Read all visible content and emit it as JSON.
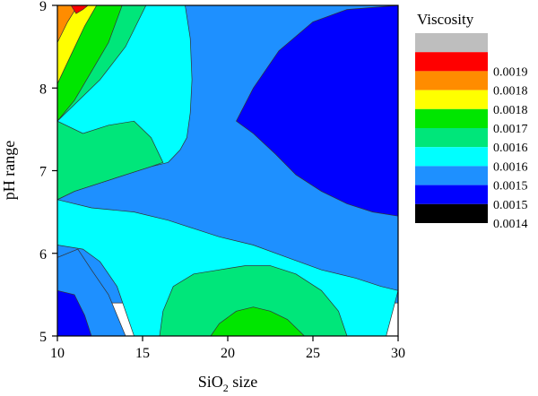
{
  "chart_data": {
    "type": "contour",
    "title": "",
    "xlabel": {
      "main": "SiO",
      "sub": "2",
      "tail": " size"
    },
    "ylabel": "pH range",
    "xlim": [
      10,
      30
    ],
    "ylim": [
      5,
      9
    ],
    "xticks": [
      "10",
      "15",
      "20",
      "25",
      "30"
    ],
    "yticks": [
      "5",
      "6",
      "7",
      "8",
      "9"
    ],
    "legend": {
      "title": "Viscosity",
      "position": "right",
      "levels": [
        {
          "label": "",
          "color": "#bebebe"
        },
        {
          "label": "0.0019",
          "color": "#ff0000"
        },
        {
          "label": "0.0018",
          "color": "#ff8c00"
        },
        {
          "label": "0.0018",
          "color": "#ffff00"
        },
        {
          "label": "0.0017",
          "color": "#00e600"
        },
        {
          "label": "0.0016",
          "color": "#00e67a"
        },
        {
          "label": "0.0016",
          "color": "#00ffff"
        },
        {
          "label": "0.0015",
          "color": "#1e90ff"
        },
        {
          "label": "0.0015",
          "color": "#0000ff"
        },
        {
          "label": "0.0014",
          "color": "#000000"
        }
      ]
    },
    "regions": [
      {
        "color": "#1e90ff",
        "points": [
          [
            10,
            9
          ],
          [
            30,
            9
          ],
          [
            30,
            5.4
          ],
          [
            10,
            5.4
          ]
        ]
      },
      {
        "color": "#00ffff",
        "points": [
          [
            10,
            8.35
          ],
          [
            10,
            6.65
          ],
          [
            11,
            6.75
          ],
          [
            12.5,
            6.85
          ],
          [
            14,
            6.95
          ],
          [
            15.5,
            7.05
          ],
          [
            16.5,
            7.1
          ],
          [
            17.2,
            7.25
          ],
          [
            17.6,
            7.4
          ],
          [
            17.8,
            7.7
          ],
          [
            17.9,
            8.1
          ],
          [
            17.8,
            8.6
          ],
          [
            17.5,
            9
          ],
          [
            11.7,
            9
          ],
          [
            11,
            8.8
          ]
        ]
      },
      {
        "color": "#00ffff",
        "points": [
          [
            10,
            6.65
          ],
          [
            12,
            6.55
          ],
          [
            14.5,
            6.5
          ],
          [
            16.5,
            6.4
          ],
          [
            18,
            6.3
          ],
          [
            19.5,
            6.2
          ],
          [
            21.5,
            6.1
          ],
          [
            23.5,
            5.95
          ],
          [
            25.5,
            5.8
          ],
          [
            27.5,
            5.7
          ],
          [
            29,
            5.6
          ],
          [
            30,
            5.55
          ],
          [
            29.3,
            5
          ],
          [
            14.5,
            5
          ],
          [
            13.5,
            5.6
          ],
          [
            12.5,
            5.9
          ],
          [
            11.5,
            6.05
          ],
          [
            10,
            6.1
          ]
        ]
      },
      {
        "color": "#00e67a",
        "points": [
          [
            10,
            7.6
          ],
          [
            11,
            7.8
          ],
          [
            12.5,
            8.1
          ],
          [
            14,
            8.5
          ],
          [
            15.2,
            9
          ],
          [
            11.7,
            9
          ],
          [
            11,
            8.8
          ],
          [
            10,
            8.35
          ],
          [
            10,
            6.65
          ],
          [
            11,
            6.75
          ],
          [
            12.5,
            6.85
          ],
          [
            14,
            6.95
          ],
          [
            15.5,
            7.05
          ],
          [
            16.2,
            7.1
          ],
          [
            15.5,
            7.4
          ],
          [
            14.5,
            7.6
          ],
          [
            13,
            7.55
          ],
          [
            11.5,
            7.45
          ]
        ]
      },
      {
        "color": "#00e600",
        "points": [
          [
            10,
            7.6
          ],
          [
            11,
            7.85
          ],
          [
            12,
            8.2
          ],
          [
            13,
            8.55
          ],
          [
            13.8,
            9
          ],
          [
            11.7,
            9
          ],
          [
            11,
            8.8
          ],
          [
            10,
            8.35
          ]
        ]
      },
      {
        "color": "#ffff00",
        "points": [
          [
            10,
            8.05
          ],
          [
            10.8,
            8.4
          ],
          [
            11.6,
            8.75
          ],
          [
            12.3,
            9
          ],
          [
            11.7,
            9
          ],
          [
            10.5,
            9
          ],
          [
            10,
            8.9
          ]
        ]
      },
      {
        "color": "#ff8c00",
        "points": [
          [
            10,
            8.55
          ],
          [
            10.6,
            8.8
          ],
          [
            11.2,
            9
          ],
          [
            10,
            9
          ]
        ]
      },
      {
        "color": "#ff0000",
        "points": [
          [
            10.8,
            9
          ],
          [
            11.1,
            8.9
          ],
          [
            11.5,
            8.95
          ],
          [
            11.8,
            9
          ]
        ]
      },
      {
        "color": "#00e67a",
        "points": [
          [
            16,
            5
          ],
          [
            16.2,
            5.3
          ],
          [
            16.8,
            5.6
          ],
          [
            18,
            5.75
          ],
          [
            19.5,
            5.8
          ],
          [
            21,
            5.85
          ],
          [
            22.5,
            5.85
          ],
          [
            24,
            5.75
          ],
          [
            25.5,
            5.55
          ],
          [
            26.5,
            5.3
          ],
          [
            27,
            5
          ],
          [
            16,
            5
          ]
        ]
      },
      {
        "color": "#00e600",
        "points": [
          [
            19,
            5
          ],
          [
            19.5,
            5.15
          ],
          [
            20.5,
            5.3
          ],
          [
            21.5,
            5.35
          ],
          [
            22.5,
            5.3
          ],
          [
            23.5,
            5.2
          ],
          [
            24.5,
            5
          ]
        ]
      },
      {
        "color": "#0000ff",
        "points": [
          [
            20.5,
            7.6
          ],
          [
            21.5,
            8
          ],
          [
            23,
            8.45
          ],
          [
            25,
            8.8
          ],
          [
            27,
            8.95
          ],
          [
            30,
            9
          ],
          [
            30,
            6.45
          ],
          [
            28.5,
            6.5
          ],
          [
            27,
            6.6
          ],
          [
            25.5,
            6.75
          ],
          [
            24,
            6.95
          ],
          [
            22.8,
            7.2
          ],
          [
            21.5,
            7.45
          ]
        ]
      },
      {
        "color": "#1e90ff",
        "points": [
          [
            10,
            5.95
          ],
          [
            11.2,
            6.05
          ],
          [
            12,
            5.8
          ],
          [
            13,
            5.5
          ],
          [
            13.5,
            5.25
          ],
          [
            14,
            5
          ],
          [
            10,
            5
          ]
        ]
      },
      {
        "color": "#0000ff",
        "points": [
          [
            10,
            5.55
          ],
          [
            11,
            5.5
          ],
          [
            11.6,
            5.25
          ],
          [
            12,
            5
          ],
          [
            10,
            5
          ]
        ]
      }
    ]
  }
}
